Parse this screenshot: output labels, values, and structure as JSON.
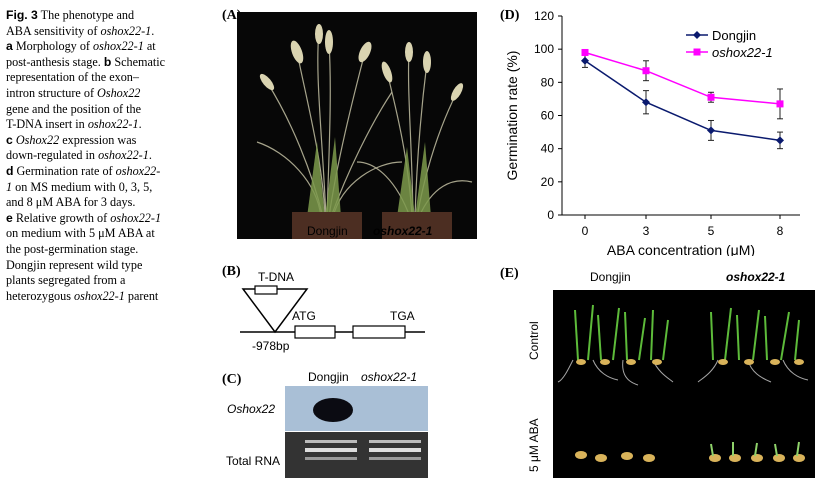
{
  "caption": {
    "fig_label": "Fig. 3",
    "lines": [
      [
        {
          "t": "Fig. 3",
          "s": "b"
        },
        {
          "t": "  The phenotype and",
          "s": ""
        }
      ],
      [
        {
          "t": "ABA sensitivity of ",
          "s": ""
        },
        {
          "t": "oshox22-1",
          "s": "i"
        },
        {
          "t": ".",
          "s": ""
        }
      ],
      [
        {
          "t": "a",
          "s": "b"
        },
        {
          "t": " Morphology of ",
          "s": ""
        },
        {
          "t": "oshox22-1",
          "s": "i"
        },
        {
          "t": " at",
          "s": ""
        }
      ],
      [
        {
          "t": "post-anthesis stage. ",
          "s": ""
        },
        {
          "t": "b",
          "s": "b"
        },
        {
          "t": " Schematic",
          "s": ""
        }
      ],
      [
        {
          "t": "representation of the exon–",
          "s": ""
        }
      ],
      [
        {
          "t": "intron structure of ",
          "s": ""
        },
        {
          "t": "Oshox22",
          "s": "i"
        }
      ],
      [
        {
          "t": "gene and the position of the",
          "s": ""
        }
      ],
      [
        {
          "t": "T-DNA insert in ",
          "s": ""
        },
        {
          "t": "oshox22-1",
          "s": "i"
        },
        {
          "t": ".",
          "s": ""
        }
      ],
      [
        {
          "t": "c",
          "s": "b"
        },
        {
          "t": " ",
          "s": ""
        },
        {
          "t": "Oshox22",
          "s": "i"
        },
        {
          "t": " expression was",
          "s": ""
        }
      ],
      [
        {
          "t": "down-regulated in ",
          "s": ""
        },
        {
          "t": "oshox22-1",
          "s": "i"
        },
        {
          "t": ".",
          "s": ""
        }
      ],
      [
        {
          "t": "d",
          "s": "b"
        },
        {
          "t": " Germination rate of ",
          "s": ""
        },
        {
          "t": "oshox22-",
          "s": "i"
        }
      ],
      [
        {
          "t": "1",
          "s": "i"
        },
        {
          "t": " on MS medium with 0, 3, 5,",
          "s": ""
        }
      ],
      [
        {
          "t": "and 8 μM ABA for 3 days.",
          "s": ""
        }
      ],
      [
        {
          "t": "e",
          "s": "b"
        },
        {
          "t": " Relative growth of ",
          "s": ""
        },
        {
          "t": "oshox22-1",
          "s": "i"
        }
      ],
      [
        {
          "t": "on medium with 5 μM ABA at",
          "s": ""
        }
      ],
      [
        {
          "t": "the post-germination stage.",
          "s": ""
        }
      ],
      [
        {
          "t": "Dongjin represent wild type",
          "s": ""
        }
      ],
      [
        {
          "t": "plants segregated from a",
          "s": ""
        }
      ],
      [
        {
          "t": "heterozygous ",
          "s": ""
        },
        {
          "t": "oshox22-1",
          "s": "i"
        },
        {
          "t": " parent",
          "s": ""
        }
      ]
    ]
  },
  "panelA": {
    "label": "(A)",
    "left_name": "Dongjin",
    "right_name": "oshox22-1"
  },
  "panelB": {
    "label": "(B)",
    "tdna": "T-DNA",
    "atg": "ATG",
    "tga": "TGA",
    "position": "-978bp"
  },
  "panelC": {
    "label": "(C)",
    "col1": "Dongjin",
    "col2": "oshox22-1",
    "row1": "Oshox22",
    "row2": "Total RNA"
  },
  "panelD": {
    "label": "(D)"
  },
  "panelE": {
    "label": "(E)",
    "col1": "Dongjin",
    "col2": "oshox22-1",
    "row1": "Control",
    "row2": "5 μM ABA"
  },
  "colors": {
    "dongjin": "#0a1a6e",
    "oshox": "#ff00ff",
    "blot_bg": "#a9bfd6"
  },
  "chart_data": {
    "type": "line",
    "x": [
      0,
      3,
      5,
      8
    ],
    "xticks": [
      "0",
      "3",
      "5",
      "8"
    ],
    "xlabel": "ABA concentration (μM)",
    "ylabel": "Germination rate (%)",
    "ylim": [
      0,
      120
    ],
    "yticks": [
      0,
      20,
      40,
      60,
      80,
      100,
      120
    ],
    "grid": false,
    "legend_position": "top-right",
    "series": [
      {
        "name": "Dongjin",
        "values": [
          93,
          68,
          51,
          45
        ],
        "errors": [
          4,
          7,
          6,
          5
        ],
        "color": "#0a1a6e",
        "marker": "diamond"
      },
      {
        "name": "oshox22-1",
        "values": [
          98,
          87,
          71,
          67
        ],
        "errors": [
          1,
          6,
          3,
          9
        ],
        "color": "#ff00ff",
        "marker": "square"
      }
    ]
  }
}
